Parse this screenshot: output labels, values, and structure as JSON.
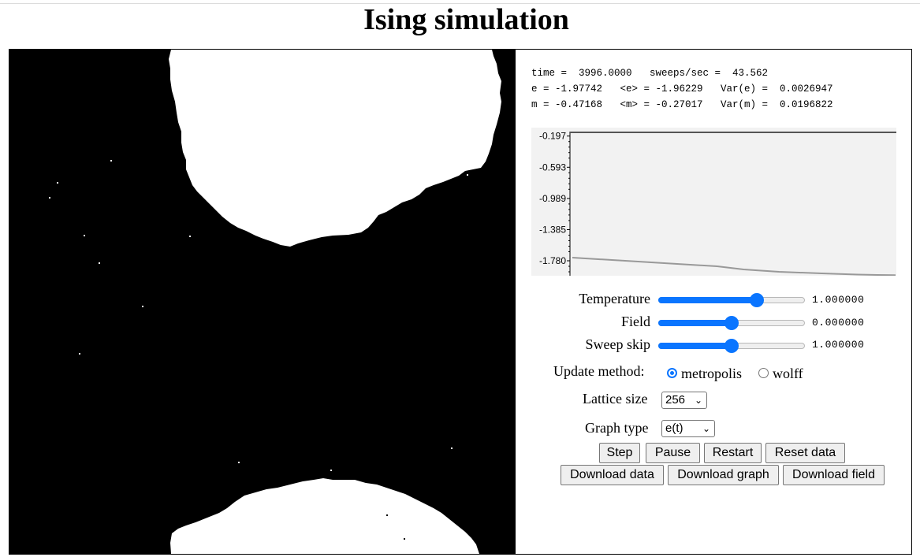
{
  "page": {
    "title": "Ising simulation"
  },
  "stats": {
    "line1": "time =  3996.0000   sweeps/sec =  43.562",
    "line2": "e = -1.97742   <e> = -1.96229   Var(e) =  0.0026947",
    "line3": "m = -0.47168   <m> = -0.27017   Var(m) =  0.0196822"
  },
  "graph": {
    "tick_labels": [
      "-0.197",
      "-0.593",
      "-0.989",
      "-1.385",
      "-1.780"
    ]
  },
  "chart_data": {
    "type": "line",
    "title": "",
    "xlabel": "",
    "ylabel": "",
    "ylim": [
      -1.97,
      -0.09
    ],
    "y_ticks": [
      -0.197,
      -0.593,
      -0.989,
      -1.385,
      -1.78
    ],
    "grid": false,
    "series": [
      {
        "x": [
          0,
          40,
          80,
          200,
          600,
          1500,
          2500,
          3996
        ],
        "values": [
          -1.74,
          -1.85,
          -1.89,
          -1.92,
          -1.94,
          -1.955,
          -1.96,
          -1.962
        ]
      }
    ]
  },
  "controls": {
    "temperature": {
      "label": "Temperature",
      "value_text": "1.000000",
      "fraction": 0.69
    },
    "field": {
      "label": "Field",
      "value_text": "0.000000",
      "fraction": 0.5
    },
    "sweep_skip": {
      "label": "Sweep skip",
      "value_text": "1.000000",
      "fraction": 0.5
    },
    "update_method": {
      "label": "Update method:",
      "options": [
        "metropolis",
        "wolff"
      ],
      "selected": "metropolis"
    },
    "lattice_size": {
      "label": "Lattice size",
      "value": "256"
    },
    "graph_type": {
      "label": "Graph type",
      "value": "e(t)"
    }
  },
  "buttons": {
    "step": "Step",
    "pause": "Pause",
    "restart": "Restart",
    "reset_data": "Reset data",
    "download_data": "Download data",
    "download_graph": "Download graph",
    "download_field": "Download field"
  },
  "colors": {
    "accent": "#0a75ff",
    "spin_up": "#ffffff",
    "spin_down": "#000000",
    "graph_bg": "#f2f2f2",
    "graph_line": "#999999"
  },
  "icons": {
    "select_arrow": "chevron-down-icon"
  }
}
